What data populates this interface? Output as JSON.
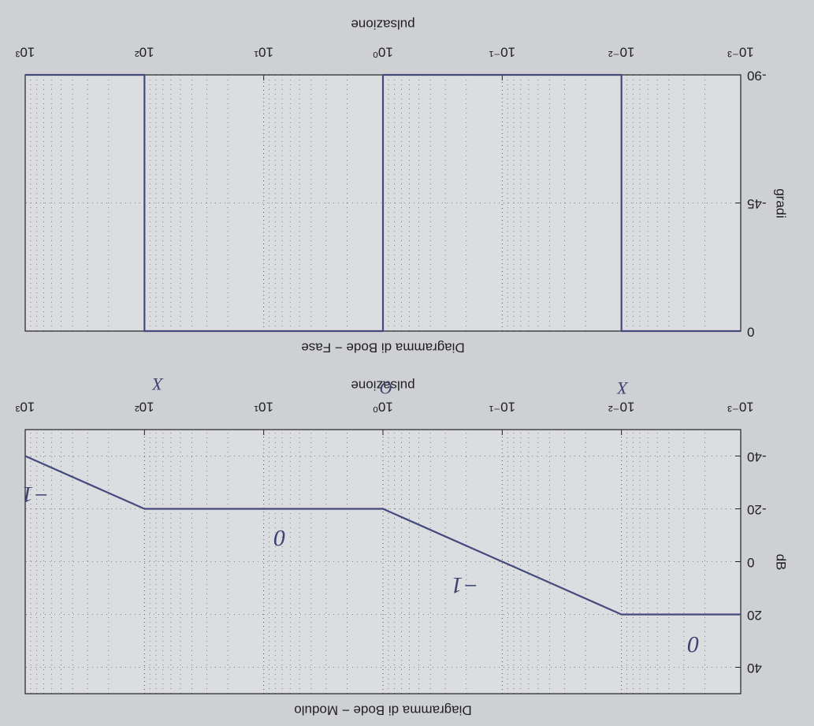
{
  "chart_data": [
    {
      "type": "line",
      "title": "Diagramma di Bode − Modulo",
      "xlabel": "pulsazione",
      "ylabel": "dB",
      "xscale": "log",
      "grid": true,
      "color": "#444a7c",
      "x": [
        0.001,
        0.01,
        1,
        100,
        1000
      ],
      "values": [
        20,
        20,
        -20,
        -20,
        -40
      ],
      "xlim": [
        0.001,
        1000
      ],
      "xticks": [
        {
          "value": 0.001,
          "label": "10⁻³"
        },
        {
          "value": 0.01,
          "label": "10⁻²"
        },
        {
          "value": 0.1,
          "label": "10⁻¹"
        },
        {
          "value": 1,
          "label": "10⁰"
        },
        {
          "value": 10,
          "label": "10¹"
        },
        {
          "value": 100,
          "label": "10²"
        },
        {
          "value": 1000,
          "label": "10³"
        }
      ],
      "ylim": [
        -50,
        50
      ],
      "yticks": [
        -40,
        -20,
        0,
        20,
        40
      ],
      "annotations": [
        "0",
        "−1",
        "0",
        "−1",
        "X",
        "O",
        "X"
      ]
    },
    {
      "type": "line",
      "title": "Diagramma di Bode − Fase",
      "xlabel": "pulsazione",
      "ylabel": "gradi",
      "xscale": "log",
      "grid": true,
      "color": "#444a7c",
      "x": [
        0.001,
        0.01,
        0.01,
        1,
        1,
        100,
        100,
        1000
      ],
      "values": [
        0,
        0,
        -90,
        -90,
        0,
        0,
        -90,
        -90
      ],
      "xlim": [
        0.001,
        1000
      ],
      "xticks": [
        {
          "value": 0.001,
          "label": "10⁻³"
        },
        {
          "value": 0.01,
          "label": "10⁻²"
        },
        {
          "value": 0.1,
          "label": "10⁻¹"
        },
        {
          "value": 1,
          "label": "10⁰"
        },
        {
          "value": 10,
          "label": "10¹"
        },
        {
          "value": 100,
          "label": "10²"
        },
        {
          "value": 1000,
          "label": "10³"
        }
      ],
      "ylim": [
        -90,
        0
      ],
      "yticks": [
        -90,
        -45,
        0
      ]
    }
  ]
}
